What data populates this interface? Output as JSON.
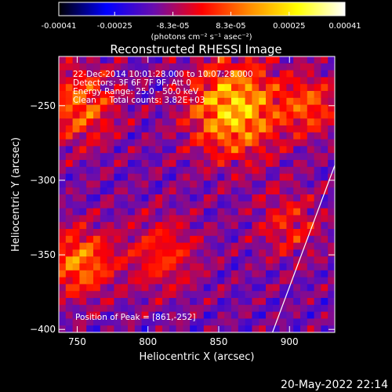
{
  "chart_data": {
    "type": "heatmap",
    "title": "Reconstructed RHESSI Image",
    "xlabel": "Heliocentric X (arcsec)",
    "ylabel": "Heliocentric Y (arcsec)",
    "xlim": [
      737,
      932
    ],
    "ylim": [
      -402,
      -217
    ],
    "xticks": [
      750,
      800,
      850,
      900
    ],
    "yticks": [
      -250,
      -300,
      -350,
      -400
    ],
    "colorbar": {
      "min": -0.00041,
      "max": 0.00041,
      "ticks": [
        "-0.00041",
        "-0.00025",
        "-8.3e-05",
        "8.3e-05",
        "0.00025",
        "0.00041"
      ],
      "label": "(photons cm⁻² s⁻¹ asec⁻²)",
      "colormap": [
        "#000000",
        "#0000ff",
        "#6a0dad",
        "#ff0000",
        "#ff8c00",
        "#ffff00",
        "#ffffff"
      ]
    },
    "annotations": [
      "22-Dec-2014 10:01:28.000 to 10:07:28.000",
      "Detectors: 3F 6F 7F 9F, Att 0",
      "Energy Range: 25.0 - 50.0 keV",
      "Clean     Total counts: 3.82E+03"
    ],
    "peak_label": "Position of Peak = [861,-252]",
    "peak": [
      861,
      -252
    ],
    "limb_line": [
      [
        888,
        -402
      ],
      [
        932,
        -290
      ]
    ]
  },
  "timestamp": "20-May-2022 22:14"
}
